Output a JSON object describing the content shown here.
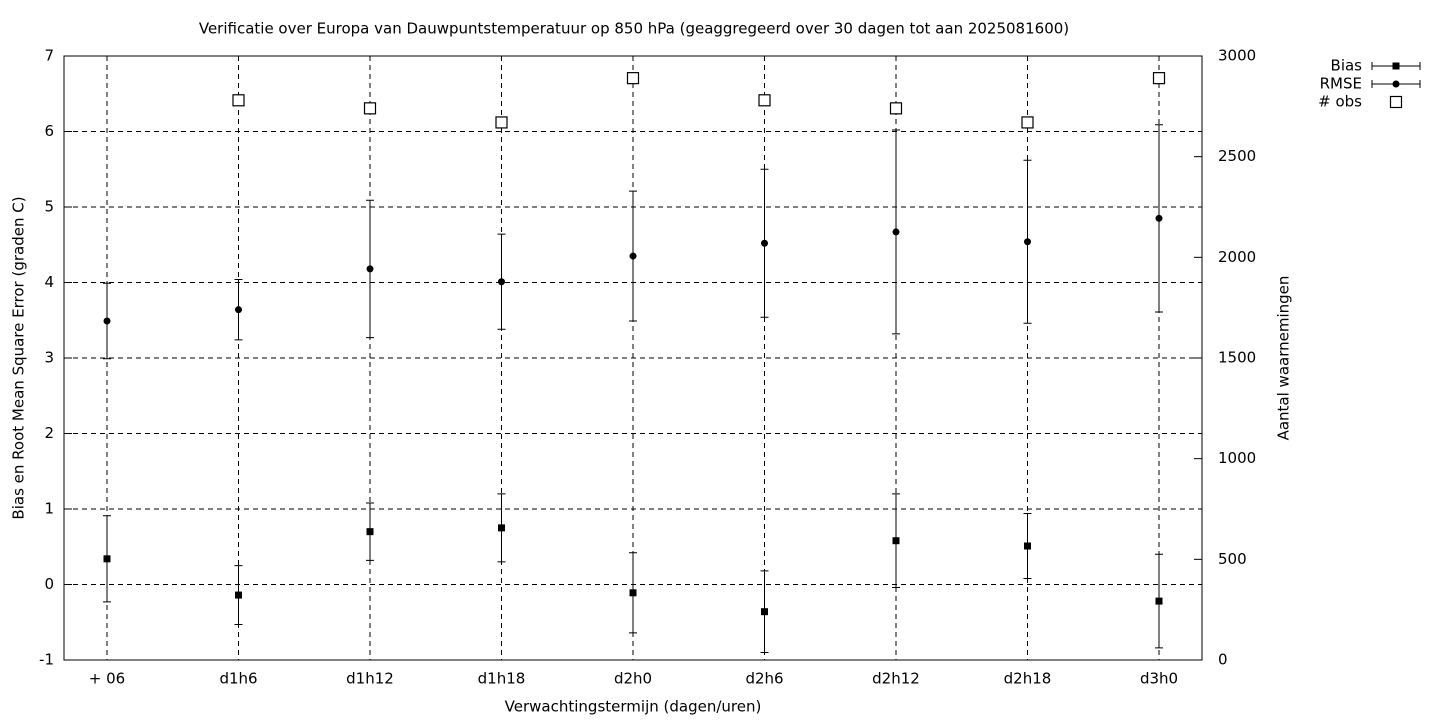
{
  "chart_data": {
    "type": "errorbar",
    "title": "Verificatie over Europa van Dauwpuntstemperatuur op 850 hPa (geaggregeerd over 30 dagen tot aan 2025081600)",
    "x_label": "Verwachtingstermijn (dagen/uren)",
    "y_label": "Bias en Root Mean Square Error (graden C)",
    "y2_label": "Aantal waarnemingen",
    "categories": [
      "+ 06",
      "d1h6",
      "d1h12",
      "d1h18",
      "d2h0",
      "d2h6",
      "d2h12",
      "d2h18",
      "d3h0"
    ],
    "series": [
      {
        "name": "Bias",
        "color": "#000000",
        "marker": "square",
        "values": [
          0.34,
          -0.14,
          0.7,
          0.75,
          -0.11,
          -0.36,
          0.58,
          0.51,
          -0.22
        ],
        "errors": [
          0.57,
          0.39,
          0.38,
          0.45,
          0.53,
          0.54,
          0.62,
          0.43,
          0.62
        ]
      },
      {
        "name": "RMSE",
        "color": "#000000",
        "marker": "circle",
        "values": [
          3.49,
          3.64,
          4.18,
          4.01,
          4.35,
          4.52,
          4.67,
          4.54,
          4.85
        ],
        "errors": [
          0.5,
          0.4,
          0.91,
          0.63,
          0.86,
          0.98,
          1.35,
          1.08,
          1.24
        ]
      },
      {
        "name": "# obs",
        "color": "#000000",
        "marker": "open-square",
        "axis": "y2",
        "values": [
          null,
          2780,
          2740,
          2670,
          2890,
          2780,
          2740,
          2670,
          2890
        ]
      }
    ],
    "ylim": [
      -1,
      7
    ],
    "yticks": [
      -1,
      0,
      1,
      2,
      3,
      4,
      5,
      6,
      7
    ],
    "y2lim": [
      0,
      3000
    ],
    "y2ticks": [
      0,
      500,
      1000,
      1500,
      2000,
      2500,
      3000
    ],
    "grid": true,
    "legend": "outside-top-right"
  }
}
